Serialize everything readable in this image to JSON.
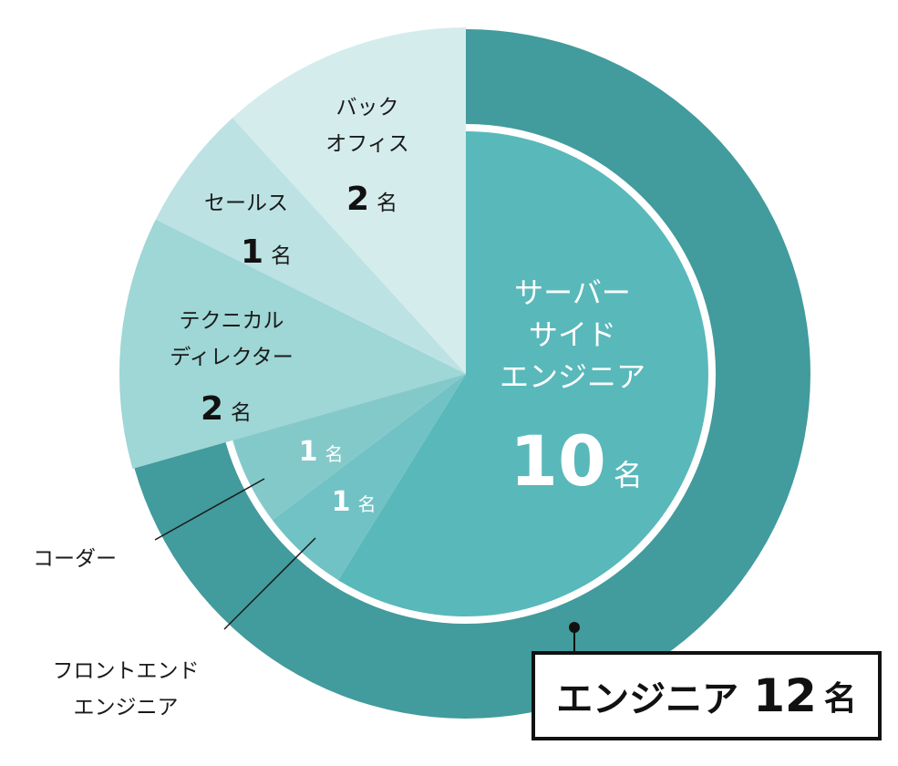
{
  "colors": {
    "server": "#59b8ba",
    "outer": "#429b9c",
    "front": "#71c2c4",
    "coder": "#84c9ca",
    "technical": "#9fd6d6",
    "sales": "#bde2e3",
    "backoffice": "#d5ecec"
  },
  "chart_data": {
    "type": "pie",
    "unit": "名",
    "slices": [
      {
        "key": "server",
        "label": "サーバーサイドエンジニア",
        "lines": [
          "サーバー",
          "サイド",
          "エンジニア"
        ],
        "value": 10,
        "value_text": "10"
      },
      {
        "key": "front",
        "label": "フロントエンドエンジニア",
        "lines": [
          "フロントエンド",
          "エンジニア"
        ],
        "value": 1,
        "value_text": "1"
      },
      {
        "key": "coder",
        "label": "コーダー",
        "lines": [
          "コーダー"
        ],
        "value": 1,
        "value_text": "1"
      },
      {
        "key": "technical",
        "label": "テクニカルディレクター",
        "lines": [
          "テクニカル",
          "ディレクター"
        ],
        "value": 2,
        "value_text": "2"
      },
      {
        "key": "sales",
        "label": "セールス",
        "lines": [
          "セールス"
        ],
        "value": 1,
        "value_text": "1"
      },
      {
        "key": "backoffice",
        "label": "バックオフィス",
        "lines": [
          "バック",
          "オフィス"
        ],
        "value": 2,
        "value_text": "2"
      }
    ],
    "outer_ring": {
      "label": "エンジニア",
      "value": 12,
      "value_text": "12",
      "covers": [
        "server",
        "front",
        "coder"
      ]
    }
  }
}
